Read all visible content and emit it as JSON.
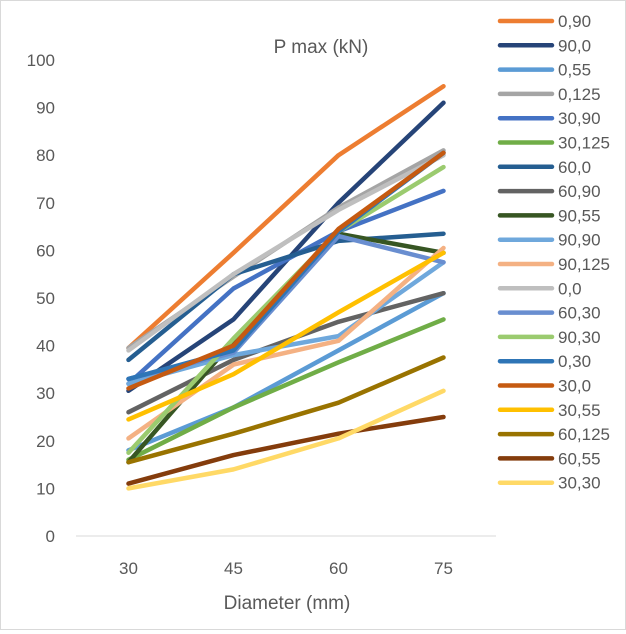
{
  "chart_data": {
    "type": "line",
    "title": "P max (kN)",
    "xlabel": "Diameter (mm)",
    "ylabel": "",
    "categories": [
      "30",
      "45",
      "60",
      "75"
    ],
    "ylim": [
      0,
      100
    ],
    "yticks": [
      0,
      10,
      20,
      30,
      40,
      50,
      60,
      70,
      80,
      90,
      100
    ],
    "grid": false,
    "legend_position": "right",
    "series": [
      {
        "name": "0,90",
        "color": "#ED7D31",
        "values": [
          39.5,
          59.5,
          80,
          94.5
        ]
      },
      {
        "name": "90,0",
        "color": "#264478",
        "values": [
          30.5,
          45.5,
          70,
          91
        ]
      },
      {
        "name": "0,55",
        "color": "#5B9BD5",
        "values": [
          18,
          27,
          39,
          51
        ]
      },
      {
        "name": "0,125",
        "color": "#A5A5A5",
        "values": [
          39.5,
          54.5,
          69,
          81
        ]
      },
      {
        "name": "30,90",
        "color": "#4472C4",
        "values": [
          32,
          52,
          64,
          72.5
        ]
      },
      {
        "name": "30,125",
        "color": "#70AD47",
        "values": [
          16,
          27,
          36.5,
          45.5
        ]
      },
      {
        "name": "60,0",
        "color": "#255E91",
        "values": [
          37,
          55,
          62,
          63.5
        ]
      },
      {
        "name": "60,90",
        "color": "#636363",
        "values": [
          26,
          37,
          45,
          51
        ]
      },
      {
        "name": "90,55",
        "color": "#375623",
        "values": [
          15.5,
          41,
          63.5,
          59.5
        ]
      },
      {
        "name": "90,90",
        "color": "#6FA8DC",
        "values": [
          32,
          38,
          42,
          57.5
        ]
      },
      {
        "name": "90,125",
        "color": "#F4B183",
        "values": [
          20.5,
          36,
          41,
          60.5
        ]
      },
      {
        "name": "0,0",
        "color": "#BFBFBF",
        "values": [
          39,
          55,
          68.5,
          80
        ]
      },
      {
        "name": "60,30",
        "color": "#698ED0",
        "values": [
          33,
          38.5,
          63,
          57.5
        ]
      },
      {
        "name": "90,30",
        "color": "#9BCB6F",
        "values": [
          17.5,
          41.5,
          64,
          77.5
        ]
      },
      {
        "name": "0,30",
        "color": "#2E75B6",
        "values": [
          33,
          39,
          64,
          80.5
        ]
      },
      {
        "name": "30,0",
        "color": "#C55A11",
        "values": [
          31,
          40,
          64.5,
          80.5
        ]
      },
      {
        "name": "30,55",
        "color": "#FFC000",
        "values": [
          24.5,
          34,
          47,
          59.5
        ]
      },
      {
        "name": "60,125",
        "color": "#997300",
        "values": [
          15.5,
          21.5,
          28,
          37.5
        ]
      },
      {
        "name": "60,55",
        "color": "#843C0C",
        "values": [
          11,
          17,
          21.5,
          25
        ]
      },
      {
        "name": "30,30",
        "color": "#FFD966",
        "values": [
          10,
          14,
          20.5,
          30.5
        ]
      }
    ]
  }
}
